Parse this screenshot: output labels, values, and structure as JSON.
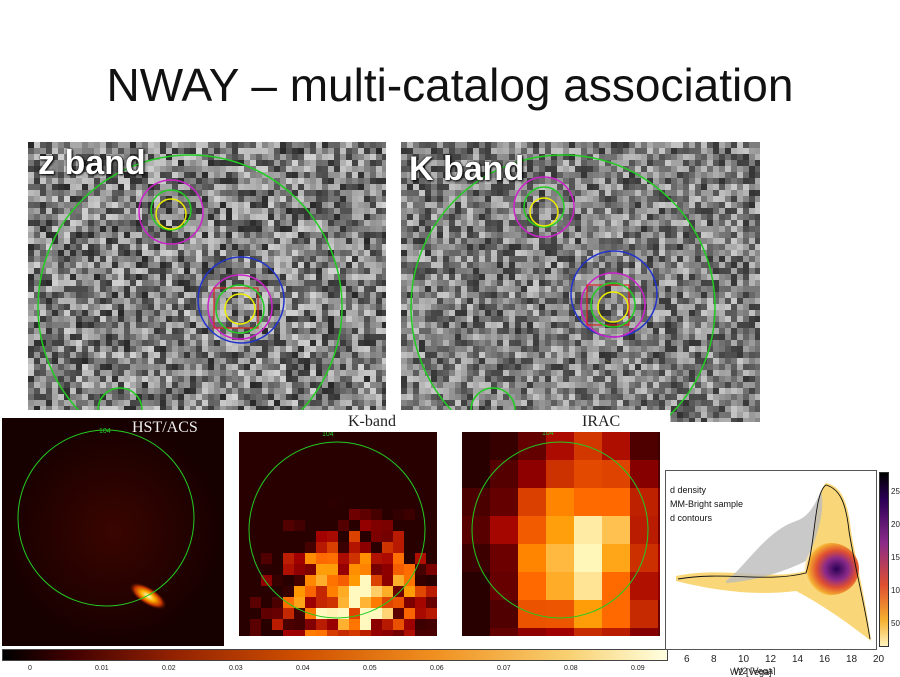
{
  "slide": {
    "title": "NWAY – multi-catalog association"
  },
  "panels": {
    "z_band": {
      "label": "z band"
    },
    "k_band": {
      "label": "K band"
    }
  },
  "thumbnails": [
    {
      "label": "HST/ACS",
      "circle_label": "104"
    },
    {
      "label": "K-band",
      "circle_label": "104"
    },
    {
      "label": "IRAC",
      "circle_label": "104"
    }
  ],
  "colorbar": {
    "ticks": [
      "0",
      "0.01",
      "0.02",
      "0.03",
      "0.04",
      "0.05",
      "0.06",
      "0.07",
      "0.08",
      "0.09"
    ]
  },
  "density_plot": {
    "legend": [
      "d density",
      "MM-Bright sample",
      "d contours"
    ],
    "x_ticks": [
      "6",
      "8",
      "10",
      "12",
      "14",
      "16",
      "18",
      "20"
    ],
    "x_label": "W2 [Vega]",
    "colorbar_ticks": [
      "25",
      "20",
      "15",
      "10",
      "50"
    ]
  },
  "colors": {
    "match_green": "#22cc22",
    "prior_magenta": "#cc22cc",
    "blue_circle": "#2233cc",
    "yellow_circle": "#eeee00",
    "red_box": "#dd2222"
  }
}
